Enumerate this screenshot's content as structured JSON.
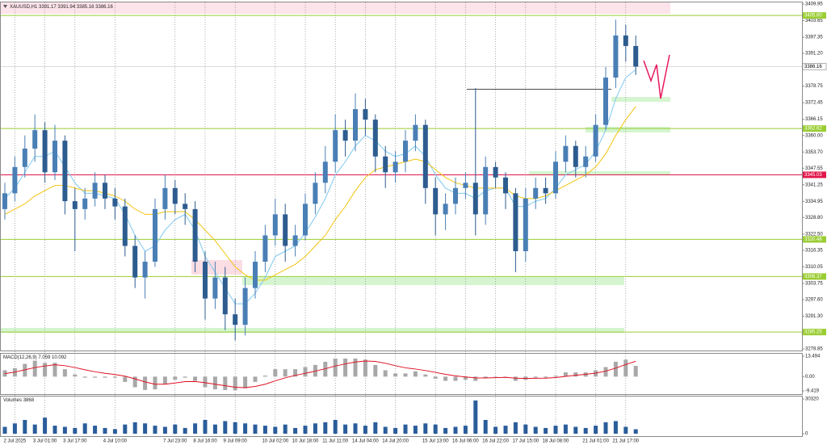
{
  "chart_data": [
    {
      "type": "candlestick",
      "title": "XAUUSD,H1",
      "quote": [
        3391.17,
        3391.94,
        3385.16,
        3386.16
      ],
      "up_color": "#4a7fb5",
      "down_color": "#2d5c8f",
      "grid": true,
      "categories": [
        null,
        "2 Jul 2025",
        null,
        null,
        "3 Jul 01:00",
        null,
        null,
        "3 Jul 17:00",
        null,
        null,
        null,
        "4 Jul 10:00",
        null,
        null,
        null,
        null,
        null,
        "7 Jul 23:00",
        null,
        null,
        "8 Jul 16:00",
        null,
        null,
        "9 Jul 09:00",
        null,
        null,
        null,
        "10 Jul 02:00",
        null,
        null,
        "10 Jul 18:00",
        null,
        null,
        "11 Jul 11:00",
        null,
        null,
        "14 Jul 04:00",
        null,
        null,
        "14 Jul 20:00",
        null,
        null,
        null,
        "15 Jul 13:00",
        null,
        null,
        "16 Jul 06:00",
        null,
        null,
        "16 Jul 22:00",
        null,
        null,
        "17 Jul 15:00",
        null,
        null,
        "18 Jul 08:00",
        null,
        null,
        null,
        "21 Jul 01:00",
        null,
        null,
        "21 Jul 17:00",
        null
      ],
      "open": [
        3332,
        3338,
        3348,
        3355,
        3362,
        3346,
        3358,
        3335,
        3332,
        3336,
        3342,
        3336,
        3333,
        3318,
        3306,
        3312,
        3332,
        3340,
        3334,
        3332,
        3312,
        3298,
        3306,
        3292,
        3288,
        3302,
        3312,
        3322,
        3330,
        3318,
        3322,
        3334,
        3342,
        3350,
        3362,
        3358,
        3370,
        3366,
        3352,
        3346,
        3350,
        3358,
        3364,
        3340,
        3330,
        3334,
        3340,
        3342,
        3330,
        3348,
        3344,
        3338,
        3316,
        3336,
        3340,
        3338,
        3350,
        3356,
        3348,
        3352,
        3364,
        3382,
        3398,
        3394
      ],
      "high": [
        3342,
        3352,
        3360,
        3368,
        3365,
        3364,
        3360,
        3340,
        3340,
        3346,
        3345,
        3340,
        3336,
        3322,
        3316,
        3336,
        3345,
        3343,
        3338,
        3335,
        3316,
        3312,
        3310,
        3298,
        3306,
        3316,
        3326,
        3336,
        3334,
        3326,
        3338,
        3346,
        3356,
        3368,
        3366,
        3376,
        3374,
        3368,
        3356,
        3354,
        3362,
        3368,
        3366,
        3344,
        3338,
        3344,
        3346,
        3378,
        3352,
        3350,
        3346,
        3340,
        3340,
        3344,
        3344,
        3354,
        3360,
        3358,
        3356,
        3368,
        3386,
        3404,
        3402,
        3398
      ],
      "low": [
        3328,
        3335,
        3344,
        3350,
        3342,
        3343,
        3330,
        3316,
        3328,
        3333,
        3332,
        3328,
        3314,
        3302,
        3298,
        3310,
        3328,
        3330,
        3326,
        3308,
        3290,
        3294,
        3286,
        3282,
        3284,
        3298,
        3308,
        3318,
        3312,
        3314,
        3320,
        3330,
        3338,
        3346,
        3352,
        3354,
        3360,
        3346,
        3340,
        3342,
        3346,
        3354,
        3334,
        3322,
        3324,
        3330,
        3336,
        3322,
        3326,
        3340,
        3332,
        3308,
        3312,
        3332,
        3334,
        3336,
        3346,
        3344,
        3344,
        3350,
        3362,
        3378,
        3388,
        3383
      ],
      "close": [
        3338,
        3348,
        3355,
        3362,
        3346,
        3358,
        3335,
        3332,
        3336,
        3342,
        3336,
        3333,
        3318,
        3306,
        3312,
        3332,
        3340,
        3334,
        3332,
        3312,
        3298,
        3306,
        3292,
        3288,
        3302,
        3312,
        3322,
        3330,
        3318,
        3322,
        3334,
        3342,
        3350,
        3362,
        3358,
        3370,
        3366,
        3352,
        3346,
        3350,
        3358,
        3364,
        3340,
        3330,
        3334,
        3340,
        3342,
        3330,
        3348,
        3344,
        3338,
        3316,
        3336,
        3340,
        3338,
        3350,
        3356,
        3348,
        3352,
        3364,
        3382,
        3398,
        3394,
        3386.16
      ],
      "moving_averages": [
        {
          "color": "#7ec8f0",
          "values": [
            3336,
            3340,
            3346,
            3352,
            3352,
            3354,
            3348,
            3342,
            3338,
            3338,
            3337,
            3336,
            3330,
            3322,
            3316,
            3318,
            3324,
            3328,
            3330,
            3324,
            3314,
            3308,
            3302,
            3296,
            3296,
            3300,
            3306,
            3314,
            3316,
            3318,
            3323,
            3329,
            3336,
            3345,
            3350,
            3356,
            3360,
            3358,
            3354,
            3352,
            3353,
            3356,
            3352,
            3345,
            3340,
            3338,
            3338,
            3336,
            3339,
            3340,
            3340,
            3333,
            3333,
            3335,
            3336,
            3340,
            3345,
            3347,
            3349,
            3354,
            3362,
            3374,
            3382,
            3385
          ]
        },
        {
          "color": "#f2c40f",
          "values": [
            3330,
            3332,
            3334,
            3337,
            3339,
            3341,
            3341,
            3340,
            3339,
            3339,
            3338,
            3337,
            3335,
            3332,
            3330,
            3330,
            3331,
            3331,
            3331,
            3328,
            3324,
            3320,
            3315,
            3310,
            3307,
            3305,
            3305,
            3307,
            3309,
            3311,
            3314,
            3318,
            3322,
            3328,
            3333,
            3339,
            3344,
            3347,
            3348,
            3349,
            3350,
            3351,
            3350,
            3347,
            3344,
            3342,
            3341,
            3340,
            3340,
            3340,
            3340,
            3337,
            3336,
            3336,
            3337,
            3339,
            3341,
            3343,
            3345,
            3348,
            3353,
            3360,
            3366,
            3371
          ]
        }
      ],
      "trendline": 3377.6,
      "ylim": [
        3278.85,
        3409.95
      ],
      "yticks": [
        {
          "value": 3409.95,
          "label": "3409.95"
        },
        {
          "value": 3403.65,
          "label": "3403.65"
        },
        {
          "value": 3397.35,
          "label": "3397.35"
        },
        {
          "value": 3391.2,
          "label": "3391.20"
        },
        {
          "value": 3378.75,
          "label": "3378.75"
        },
        {
          "value": 3372.45,
          "label": "3372.45"
        },
        {
          "value": 3366.15,
          "label": "3366.15"
        },
        {
          "value": 3360,
          "label": "3360.00"
        },
        {
          "value": 3353.7,
          "label": "3353.70"
        },
        {
          "value": 3347.55,
          "label": "3347.55"
        },
        {
          "value": 3341.25,
          "label": "3341.25"
        },
        {
          "value": 3334.95,
          "label": "3334.95"
        },
        {
          "value": 3328.8,
          "label": "3328.80"
        },
        {
          "value": 3322.5,
          "label": "3322.50"
        },
        {
          "value": 3316.35,
          "label": "3316.35"
        },
        {
          "value": 3310.05,
          "label": "3310.05"
        },
        {
          "value": 3303.75,
          "label": "3303.75"
        },
        {
          "value": 3297.6,
          "label": "3297.60"
        },
        {
          "value": 3291.3,
          "label": "3291.30"
        },
        {
          "value": 3278.85,
          "label": "3278.85"
        }
      ],
      "levels": [
        {
          "value": 3405.6,
          "label": "3405.60",
          "color": "#9acd32"
        },
        {
          "value": 3386.16,
          "color": "#ffffff"
        },
        {
          "value": 3362.62,
          "color": "#9acd32"
        },
        {
          "value": 3345.03,
          "color": "#e0174a"
        },
        {
          "value": 3320.48,
          "color": "#9acd32"
        },
        {
          "value": 3306.37,
          "color": "#9acd32"
        },
        {
          "value": 3285.25,
          "color": "#9acd32"
        }
      ]
    },
    {
      "type": "bar",
      "title": "MACD(12,26,9)",
      "color": "#a8a8a8",
      "values": [
        4.2,
        5.6,
        8.4,
        10.5,
        9.1,
        9.1,
        4.9,
        1.4,
        -0.7,
        -0.7,
        -0.7,
        -0.7,
        -3.5,
        -7.0,
        -8.8,
        -8.4,
        -4.9,
        -2.1,
        -0.7,
        -2.8,
        -7.0,
        -8.4,
        -8.9,
        -9.0,
        -7.7,
        -3.5,
        0.7,
        4.9,
        4.9,
        4.9,
        6.3,
        7.7,
        9.8,
        11.9,
        11.9,
        11.9,
        11.2,
        7.7,
        4.2,
        2.1,
        2.1,
        3.5,
        1.4,
        -1.4,
        -2.8,
        -2.8,
        -2.1,
        -2.8,
        -0.7,
        0,
        0,
        -2.8,
        -2.1,
        -0.7,
        -0.7,
        0.7,
        2.8,
        2.8,
        2.8,
        4.2,
        6.3,
        9.8,
        11.2,
        7.059
      ],
      "signal": {
        "color": "#e01020",
        "values": [
          2.0,
          3.0,
          4.5,
          6.0,
          7.0,
          7.8,
          7.2,
          6.0,
          4.5,
          3.2,
          2.2,
          1.4,
          0.3,
          -1.5,
          -3.5,
          -5.0,
          -5.0,
          -4.2,
          -3.3,
          -3.2,
          -4.0,
          -5.0,
          -6.0,
          -7.0,
          -7.3,
          -6.5,
          -5.0,
          -2.8,
          -0.8,
          0.8,
          2.2,
          3.6,
          5.2,
          7.0,
          8.4,
          9.6,
          10.3,
          10.0,
          8.8,
          7.2,
          5.8,
          5.0,
          4.0,
          2.8,
          1.5,
          0.5,
          -0.2,
          -0.8,
          -0.9,
          -0.7,
          -0.5,
          -1.0,
          -1.2,
          -1.1,
          -1.0,
          -0.6,
          0.2,
          0.9,
          1.5,
          2.3,
          3.6,
          5.6,
          8.0,
          10.092
        ]
      },
      "ylim": [
        -9.419,
        13.494
      ],
      "yticks": [
        13.494,
        {
          "value": 0,
          "label": "0.00"
        },
        -9.419
      ]
    },
    {
      "type": "bar",
      "title": "Volumes",
      "color": "#2a5d9a",
      "values": [
        6000,
        9000,
        12000,
        8000,
        14000,
        7000,
        6000,
        5000,
        9000,
        7000,
        5000,
        4000,
        8000,
        10000,
        9000,
        7000,
        6000,
        8000,
        5000,
        9000,
        12000,
        8000,
        11000,
        10000,
        9000,
        8000,
        7000,
        6000,
        8000,
        5000,
        7000,
        9000,
        10000,
        12000,
        8000,
        9000,
        7000,
        10000,
        6000,
        5000,
        8000,
        7000,
        9000,
        8000,
        5000,
        6000,
        7000,
        29000,
        12000,
        6000,
        7000,
        10000,
        8000,
        6000,
        5000,
        7000,
        8000,
        6000,
        5000,
        7000,
        10000,
        11000,
        6000,
        3868
      ],
      "ylim": [
        0,
        30320
      ],
      "yticks": [
        30320,
        0
      ]
    }
  ]
}
